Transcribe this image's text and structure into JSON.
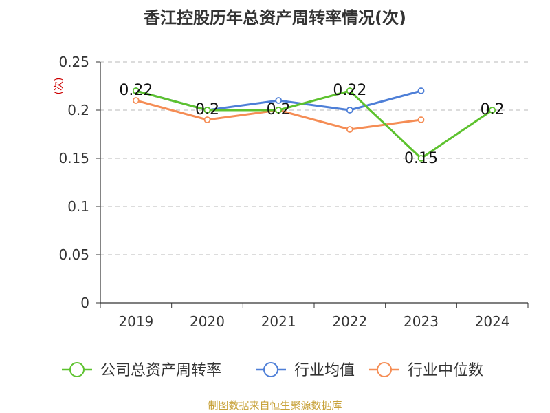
{
  "chart_data": {
    "type": "line",
    "title": "香江控股历年总资产周转率情况(次)",
    "ylabel": "(次)",
    "xlabel": "",
    "categories": [
      "2019",
      "2020",
      "2021",
      "2022",
      "2023",
      "2024"
    ],
    "ylim": [
      0,
      0.25
    ],
    "yticks": [
      "0",
      "0.05",
      "0.1",
      "0.15",
      "0.2",
      "0.25"
    ],
    "grid": true,
    "legend_position": "bottom",
    "series": [
      {
        "name": "公司总资产周转率",
        "color": "#5dc22e",
        "values": [
          0.22,
          0.2,
          0.2,
          0.22,
          0.15,
          0.2
        ],
        "labels": [
          "0.22",
          "0.2",
          "0.2",
          "0.22",
          "0.15",
          "0.2"
        ]
      },
      {
        "name": "行业均值",
        "color": "#4e7fd7",
        "values": [
          0.22,
          0.2,
          0.21,
          0.2,
          0.22,
          null
        ]
      },
      {
        "name": "行业中位数",
        "color": "#f58d55",
        "values": [
          0.21,
          0.19,
          0.2,
          0.18,
          0.19,
          null
        ]
      }
    ]
  },
  "footer": {
    "source": "制图数据来自恒生聚源数据库"
  }
}
